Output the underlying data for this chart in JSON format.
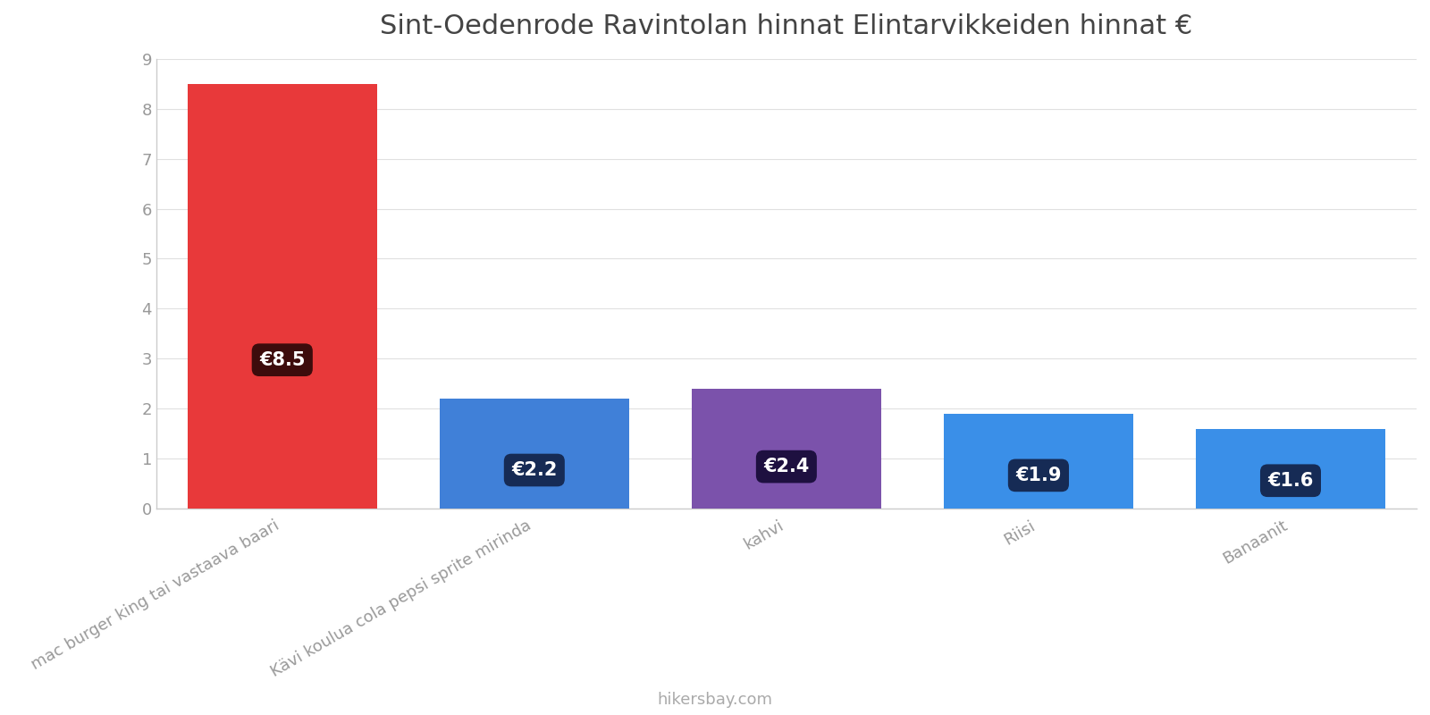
{
  "title": "Sint-Oedenrode Ravintolan hinnat Elintarvikkeiden hinnat €",
  "categories": [
    "mac burger king tai vastaava baari",
    "Kävi koulua cola pepsi sprite mirinda",
    "kahvi",
    "Riisi",
    "Banaanit"
  ],
  "values": [
    8.5,
    2.2,
    2.4,
    1.9,
    1.6
  ],
  "bar_colors": [
    "#E8393A",
    "#4080D8",
    "#7B52AB",
    "#3A8FE8",
    "#3A8FE8"
  ],
  "label_bg_colors": [
    "#3D0C0C",
    "#162B55",
    "#1E1040",
    "#162B55",
    "#162B55"
  ],
  "labels": [
    "€8.5",
    "€2.2",
    "€2.4",
    "€1.9",
    "€1.6"
  ],
  "ylim": [
    0,
    9
  ],
  "yticks": [
    0,
    1,
    2,
    3,
    4,
    5,
    6,
    7,
    8,
    9
  ],
  "footer_text": "hikersbay.com",
  "background_color": "#ffffff",
  "label_fontsize": 15,
  "title_fontsize": 22,
  "tick_fontsize": 13,
  "footer_fontsize": 13,
  "grid_color": "#e0e0e0",
  "spine_color": "#cccccc",
  "tick_color": "#999999"
}
